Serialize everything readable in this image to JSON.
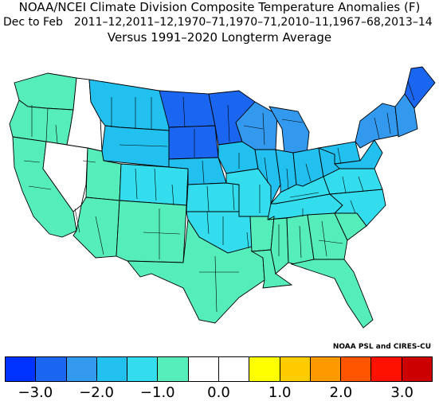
{
  "header": {
    "title": "NOAA/NCEI Climate Division Composite Temperature Anomalies (F)",
    "season": "Dec to Feb",
    "years": "2011–12,2011–12,1970–71,1970–71,2010–11,1967–68,2013–14",
    "subtitle": "Versus 1991–2020 Longterm Average"
  },
  "credit": "NOAA PSL and CIRES-CU",
  "legend": {
    "colors": [
      "#0033ff",
      "#1a66f0",
      "#3399ee",
      "#22c0ee",
      "#33ddee",
      "#55eebb",
      "#ffffff",
      "#ffffff",
      "#ffff00",
      "#ffcc00",
      "#ff9900",
      "#ff5500",
      "#ff1100",
      "#cc0000"
    ],
    "tick_labels": [
      "−3.0",
      "−2.0",
      "−1.0",
      "0.0",
      "1.0",
      "2.0",
      "3.0"
    ]
  },
  "map_data": {
    "category_colors": {
      "c0": "#0033ff",
      "c1": "#1a66f0",
      "c2": "#3399ee",
      "c3": "#22c0ee",
      "c4": "#33ddee",
      "c5": "#55eebb",
      "c6": "#ffffff"
    },
    "states": [
      {
        "name": "Washington",
        "region": "WA",
        "category": "c5"
      },
      {
        "name": "Oregon",
        "region": "OR",
        "category": "c5"
      },
      {
        "name": "California",
        "region": "CA",
        "category": "c5"
      },
      {
        "name": "Nevada",
        "region": "NV",
        "category": "c6"
      },
      {
        "name": "Idaho",
        "region": "ID",
        "category": "c6"
      },
      {
        "name": "Montana",
        "region": "MT",
        "category": "c3"
      },
      {
        "name": "Wyoming",
        "region": "WY",
        "category": "c3"
      },
      {
        "name": "Utah",
        "region": "UT",
        "category": "c5"
      },
      {
        "name": "Colorado",
        "region": "CO",
        "category": "c4"
      },
      {
        "name": "Arizona",
        "region": "AZ",
        "category": "c5"
      },
      {
        "name": "New Mexico",
        "region": "NM",
        "category": "c5"
      },
      {
        "name": "North Dakota",
        "region": "ND",
        "category": "c1"
      },
      {
        "name": "South Dakota",
        "region": "SD",
        "category": "c1"
      },
      {
        "name": "Nebraska",
        "region": "NE",
        "category": "c3"
      },
      {
        "name": "Kansas",
        "region": "KS",
        "category": "c4"
      },
      {
        "name": "Oklahoma",
        "region": "OK",
        "category": "c4"
      },
      {
        "name": "Texas",
        "region": "TX",
        "category": "c5"
      },
      {
        "name": "Minnesota",
        "region": "MN",
        "category": "c1"
      },
      {
        "name": "Iowa",
        "region": "IA",
        "category": "c3"
      },
      {
        "name": "Missouri",
        "region": "MO",
        "category": "c4"
      },
      {
        "name": "Arkansas",
        "region": "AR",
        "category": "c5"
      },
      {
        "name": "Louisiana",
        "region": "LA",
        "category": "c5"
      },
      {
        "name": "Wisconsin",
        "region": "WI",
        "category": "c2"
      },
      {
        "name": "Michigan",
        "region": "MI",
        "category": "c2"
      },
      {
        "name": "Illinois",
        "region": "IL",
        "category": "c3"
      },
      {
        "name": "Indiana",
        "region": "IN",
        "category": "c3"
      },
      {
        "name": "Ohio",
        "region": "OH",
        "category": "c3"
      },
      {
        "name": "Kentucky",
        "region": "KY",
        "category": "c4"
      },
      {
        "name": "Tennessee",
        "region": "TN",
        "category": "c4"
      },
      {
        "name": "Mississippi",
        "region": "MS",
        "category": "c5"
      },
      {
        "name": "Alabama",
        "region": "AL",
        "category": "c5"
      },
      {
        "name": "Georgia",
        "region": "GA",
        "category": "c5"
      },
      {
        "name": "Florida",
        "region": "FL",
        "category": "c5"
      },
      {
        "name": "South Carolina",
        "region": "SC",
        "category": "c5"
      },
      {
        "name": "North Carolina",
        "region": "NC",
        "category": "c4"
      },
      {
        "name": "Virginia",
        "region": "VA",
        "category": "c4"
      },
      {
        "name": "West Virginia",
        "region": "WV",
        "category": "c3"
      },
      {
        "name": "Pennsylvania",
        "region": "PA",
        "category": "c3"
      },
      {
        "name": "New York",
        "region": "NY",
        "category": "c2"
      },
      {
        "name": "New England",
        "region": "NE-states",
        "category": "c2"
      },
      {
        "name": "Maine",
        "region": "ME",
        "category": "c1"
      },
      {
        "name": "Mid-Atlantic coast",
        "region": "NJ-MD-DE",
        "category": "c3"
      }
    ]
  }
}
